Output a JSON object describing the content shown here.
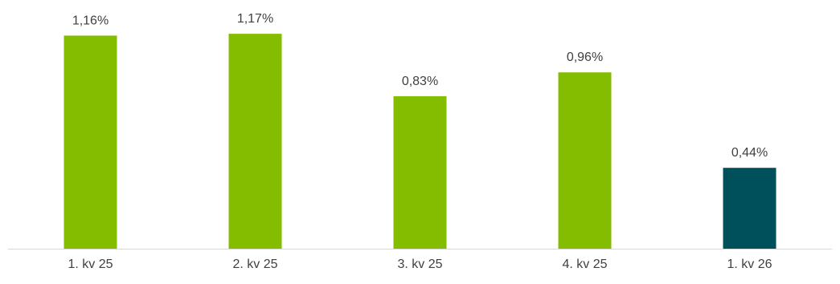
{
  "chart_data": {
    "type": "bar",
    "categories": [
      "1. kv 25",
      "2. kv 25",
      "3. kv 25",
      "4. kv 25",
      "1. kv 26"
    ],
    "values": [
      1.16,
      1.17,
      0.83,
      0.96,
      0.44
    ],
    "value_labels": [
      "1,16%",
      "1,17%",
      "0,83%",
      "0,96%",
      "0,44%"
    ],
    "bar_colors": [
      "#84BD00",
      "#84BD00",
      "#84BD00",
      "#84BD00",
      "#00505C"
    ],
    "ylim": [
      0,
      1.2
    ],
    "grid": false,
    "legend": "none"
  },
  "colors": {
    "axis": "#d9d9d9",
    "text": "#404040"
  }
}
